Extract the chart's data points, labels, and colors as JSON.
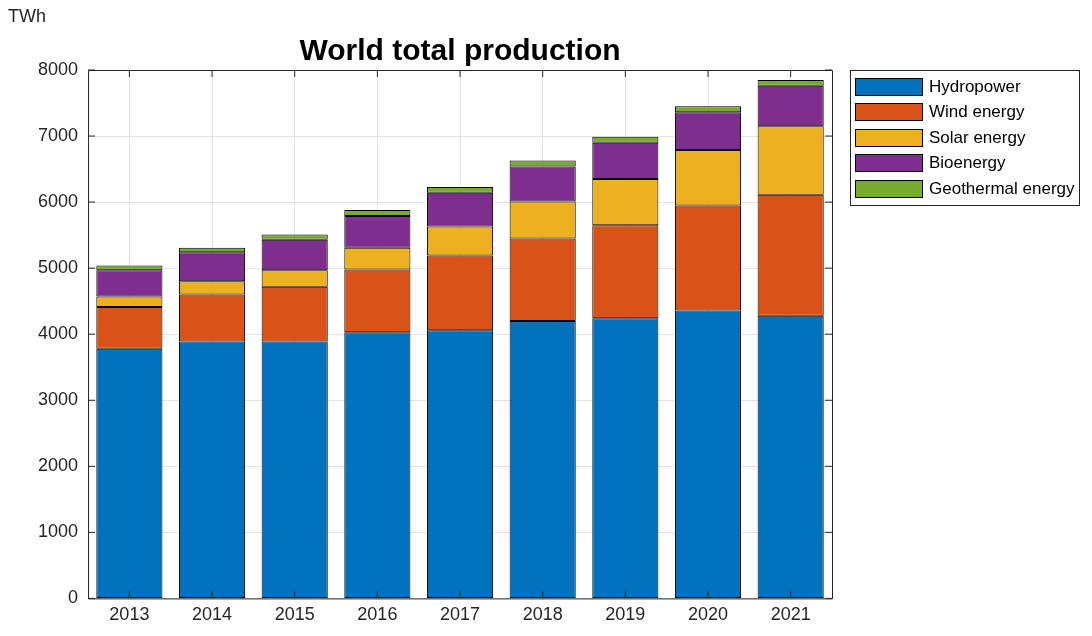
{
  "chart_data": {
    "type": "bar",
    "title": "World total production",
    "ylabel": "TWh",
    "stacked": true,
    "grid": true,
    "legend": "top right",
    "categories": [
      "2013",
      "2014",
      "2015",
      "2016",
      "2017",
      "2018",
      "2019",
      "2020",
      "2021"
    ],
    "ylim": [
      0,
      8000
    ],
    "yticks": [
      0,
      1000,
      2000,
      3000,
      4000,
      5000,
      6000,
      7000,
      8000
    ],
    "series": [
      {
        "name": "Hydropower",
        "color": "#0072bd",
        "values": [
          3780,
          3890,
          3890,
          4030,
          4060,
          4200,
          4240,
          4360,
          4280
        ]
      },
      {
        "name": "Wind energy",
        "color": "#d95319",
        "values": [
          630,
          710,
          830,
          950,
          1130,
          1250,
          1410,
          1590,
          1830
        ]
      },
      {
        "name": "Solar energy",
        "color": "#edb120",
        "values": [
          160,
          200,
          250,
          330,
          440,
          560,
          700,
          840,
          1040
        ]
      },
      {
        "name": "Bioenergy",
        "color": "#7e2f8e",
        "values": [
          400,
          440,
          460,
          480,
          510,
          530,
          550,
          570,
          610
        ]
      },
      {
        "name": "Geothermal energy",
        "color": "#77ac30",
        "values": [
          70,
          70,
          80,
          90,
          90,
          90,
          90,
          90,
          90
        ]
      }
    ]
  }
}
